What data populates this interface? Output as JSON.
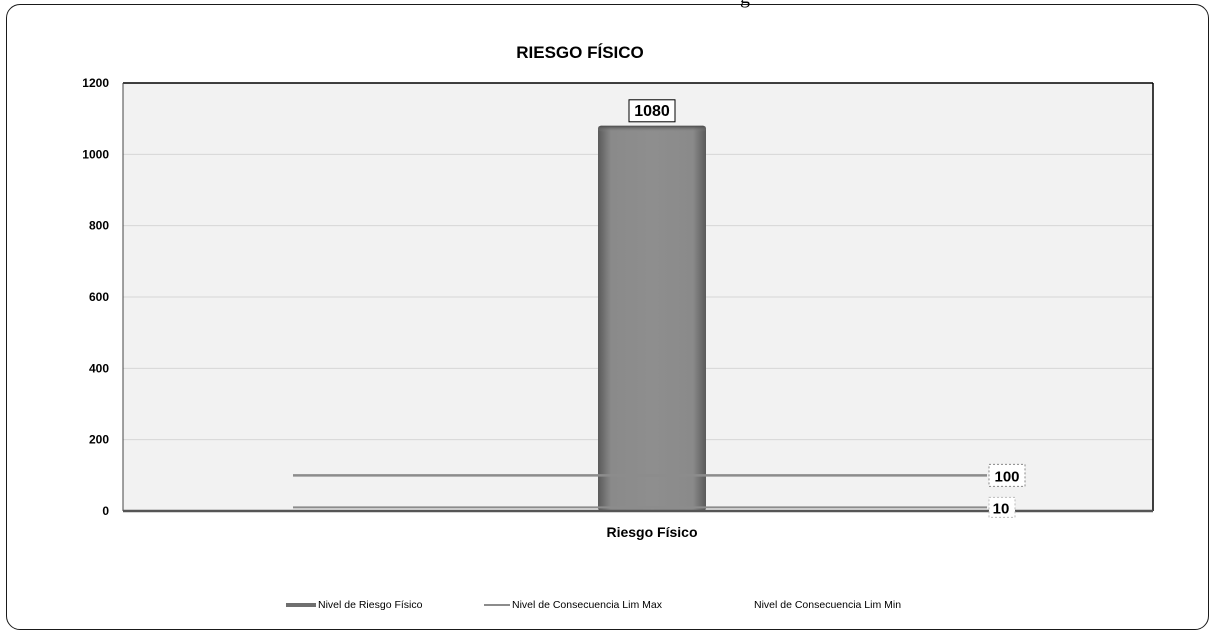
{
  "chart_data": {
    "type": "bar",
    "title": "RIESGO FÍSICO",
    "categories": [
      "Riesgo  Físico"
    ],
    "ylim": [
      0,
      1200
    ],
    "yticks": [
      0,
      200,
      400,
      600,
      800,
      1000,
      1200
    ],
    "grid": true,
    "legend_position": "bottom",
    "series": [
      {
        "name": "Nivel de Riesgo  Físico",
        "type": "bar",
        "values": [
          1080
        ],
        "label": "1080",
        "color": "#8a8a8a"
      },
      {
        "name": "Nivel de Consecuencia  Lim Max",
        "type": "line",
        "values": [
          100
        ],
        "label": "100",
        "color": "#8c8c8c"
      },
      {
        "name": "Nivel de Consecuencia  Lim Min",
        "type": "line",
        "values": [
          10
        ],
        "label": "10",
        "color": "#8c8c8c"
      }
    ]
  },
  "top_clipped_text": "g"
}
